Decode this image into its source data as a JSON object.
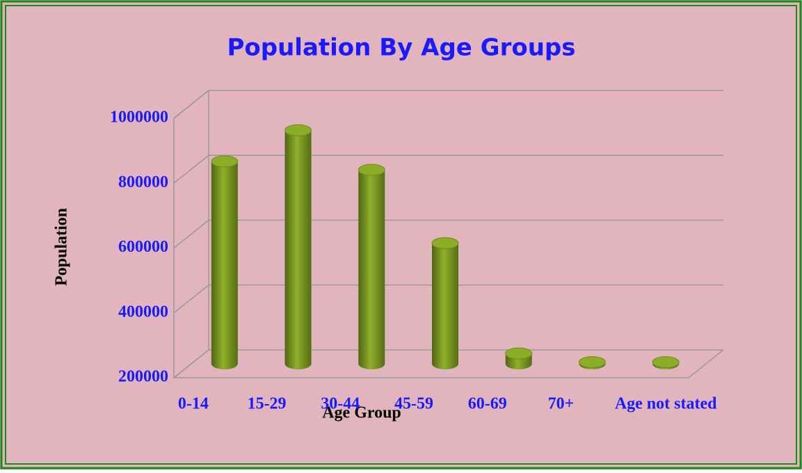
{
  "chart_data": {
    "type": "bar",
    "title": "Population By Age Groups",
    "x_label": "Age Group",
    "y_label": "Population",
    "categories": [
      "0-14",
      "15-29",
      "30-44",
      "45-59",
      "60-69",
      "70+",
      "Age not stated"
    ],
    "values": [
      824000,
      920000,
      798000,
      572000,
      232000,
      205000,
      205000
    ],
    "color": "#7a9a1e",
    "ylim": [
      200000,
      1000000
    ],
    "yticks": [
      200000,
      400000,
      600000,
      800000,
      1000000
    ],
    "grid": true
  }
}
